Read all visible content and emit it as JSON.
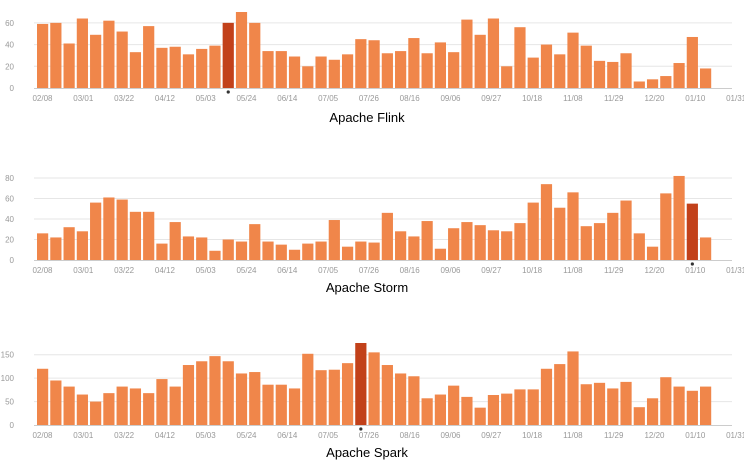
{
  "colors": {
    "bar": "#F0864A",
    "bar_highlight": "#C2411A",
    "grid": "#e6e6e6",
    "axis": "#cccccc",
    "tick_text": "#999999",
    "title_text": "#000000",
    "marker": "#333333"
  },
  "chart_data": [
    {
      "type": "bar",
      "title": "Apache Flink",
      "ylim": [
        0,
        70
      ],
      "yticks": [
        0,
        20,
        40,
        60
      ],
      "xticks": [
        "02/08",
        "03/01",
        "03/22",
        "04/12",
        "05/03",
        "05/24",
        "06/14",
        "07/05",
        "07/26",
        "08/16",
        "09/06",
        "09/27",
        "10/18",
        "11/08",
        "11/29",
        "12/20",
        "01/10",
        "01/31"
      ],
      "highlight_index": 14,
      "values": [
        59,
        60,
        41,
        64,
        49,
        62,
        52,
        33,
        57,
        37,
        38,
        31,
        36,
        39,
        60,
        70,
        60,
        34,
        34,
        29,
        20,
        29,
        26,
        31,
        45,
        44,
        32,
        34,
        46,
        32,
        42,
        33,
        63,
        49,
        64,
        20,
        56,
        28,
        40,
        31,
        51,
        39,
        25,
        24,
        32,
        6,
        8,
        11,
        23,
        47,
        18
      ],
      "grid": true
    },
    {
      "type": "bar",
      "title": "Apache Storm",
      "ylim": [
        0,
        80
      ],
      "yticks": [
        0,
        20,
        40,
        60,
        80
      ],
      "xticks": [
        "02/08",
        "03/01",
        "03/22",
        "04/12",
        "05/03",
        "05/24",
        "06/14",
        "07/05",
        "07/26",
        "08/16",
        "09/06",
        "09/27",
        "10/18",
        "11/08",
        "11/29",
        "12/20",
        "01/10",
        "01/31"
      ],
      "highlight_index": 49,
      "values": [
        26,
        22,
        32,
        28,
        56,
        61,
        59,
        47,
        47,
        16,
        37,
        23,
        22,
        9,
        20,
        18,
        35,
        18,
        15,
        10,
        16,
        18,
        39,
        13,
        18,
        17,
        46,
        28,
        23,
        38,
        11,
        31,
        37,
        34,
        29,
        28,
        36,
        56,
        74,
        51,
        66,
        33,
        36,
        46,
        58,
        26,
        13,
        65,
        82,
        55,
        22
      ],
      "grid": true
    },
    {
      "type": "bar",
      "title": "Apache Spark",
      "ylim": [
        0,
        175
      ],
      "yticks": [
        0,
        50,
        100,
        150
      ],
      "xticks": [
        "02/08",
        "03/01",
        "03/22",
        "04/12",
        "05/03",
        "05/24",
        "06/14",
        "07/05",
        "07/26",
        "08/16",
        "09/06",
        "09/27",
        "10/18",
        "11/08",
        "11/29",
        "12/20",
        "01/10",
        "01/31"
      ],
      "highlight_index": 24,
      "values": [
        120,
        95,
        82,
        65,
        50,
        68,
        82,
        78,
        68,
        98,
        82,
        128,
        136,
        147,
        136,
        110,
        113,
        86,
        86,
        78,
        152,
        117,
        118,
        132,
        175,
        155,
        128,
        110,
        104,
        57,
        65,
        84,
        60,
        37,
        64,
        67,
        76,
        76,
        120,
        130,
        157,
        87,
        90,
        78,
        92,
        38,
        57,
        102,
        82,
        73,
        82
      ],
      "grid": true
    }
  ]
}
